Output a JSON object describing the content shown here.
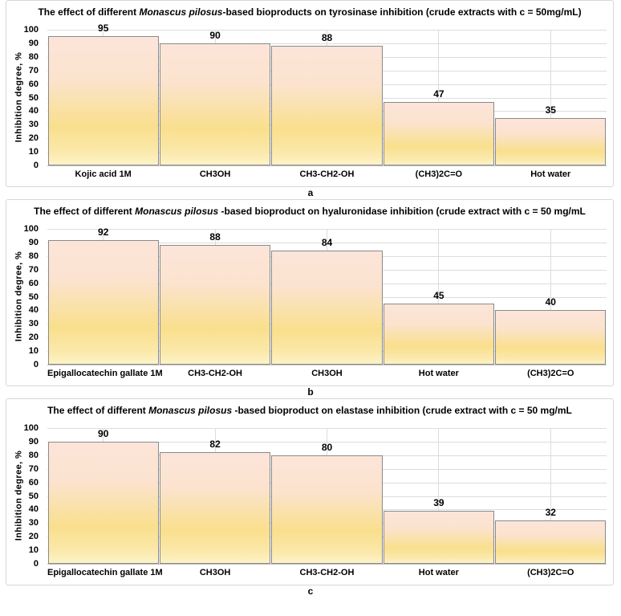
{
  "figure": {
    "description": "Three stacked bar-chart panels labelled a, b, c",
    "panel_letters": [
      "a",
      "b",
      "c"
    ]
  },
  "colors": {
    "bar_gradient_top": "#fce5d9",
    "bar_gradient_gold": "#f9df8d",
    "bar_gradient_bottom": "#fdf3c8",
    "bar_border": "#8a8a8a",
    "gridline": "#dcdcdc",
    "axis_line": "#bfbfbf",
    "panel_border": "#d7d7d7",
    "text": "#000000"
  },
  "chart_data": [
    {
      "type": "bar",
      "panel_letter": "a",
      "title_prefix": "The effect of different ",
      "title_italic": "Monascus pilosus",
      "title_suffix": "-based bioproducts on tyrosinase inhibition (crude extracts with c = 50mg/mL)",
      "categories": [
        "Kojic acid 1M",
        "CH3OH",
        "CH3-CH2-OH",
        "(CH3)2C=O",
        "Hot water"
      ],
      "values": [
        95,
        90,
        88,
        47,
        35
      ],
      "xlabel": "",
      "ylabel": "Inhibition degree, %",
      "ylim": [
        0,
        100
      ],
      "ytick_step": 10,
      "grid": true,
      "legend": "none"
    },
    {
      "type": "bar",
      "panel_letter": "b",
      "title_prefix": "The effect of different ",
      "title_italic": "Monascus pilosus",
      "title_suffix": " -based bioproduct on hyaluronidase inhibition (crude extract with c = 50 mg/mL",
      "categories": [
        "Epigallocatechin gallate 1M",
        "CH3-CH2-OH",
        "CH3OH",
        "Hot water",
        "(CH3)2C=O"
      ],
      "values": [
        92,
        88,
        84,
        45,
        40
      ],
      "xlabel": "",
      "ylabel": "Inhibition degree, %",
      "ylim": [
        0,
        100
      ],
      "ytick_step": 10,
      "grid": true,
      "legend": "none"
    },
    {
      "type": "bar",
      "panel_letter": "c",
      "title_prefix": "The effect of different ",
      "title_italic": "Monascus pilosus",
      "title_suffix": " -based bioproduct on elastase inhibition (crude extract with c = 50 mg/mL",
      "categories": [
        "Epigallocatechin gallate 1M",
        "CH3OH",
        "CH3-CH2-OH",
        "Hot water",
        "(CH3)2C=O"
      ],
      "values": [
        90,
        82,
        80,
        39,
        32
      ],
      "xlabel": "",
      "ylabel": "Inhibition degree, %",
      "ylim": [
        0,
        100
      ],
      "ytick_step": 10,
      "grid": true,
      "legend": "none"
    }
  ]
}
